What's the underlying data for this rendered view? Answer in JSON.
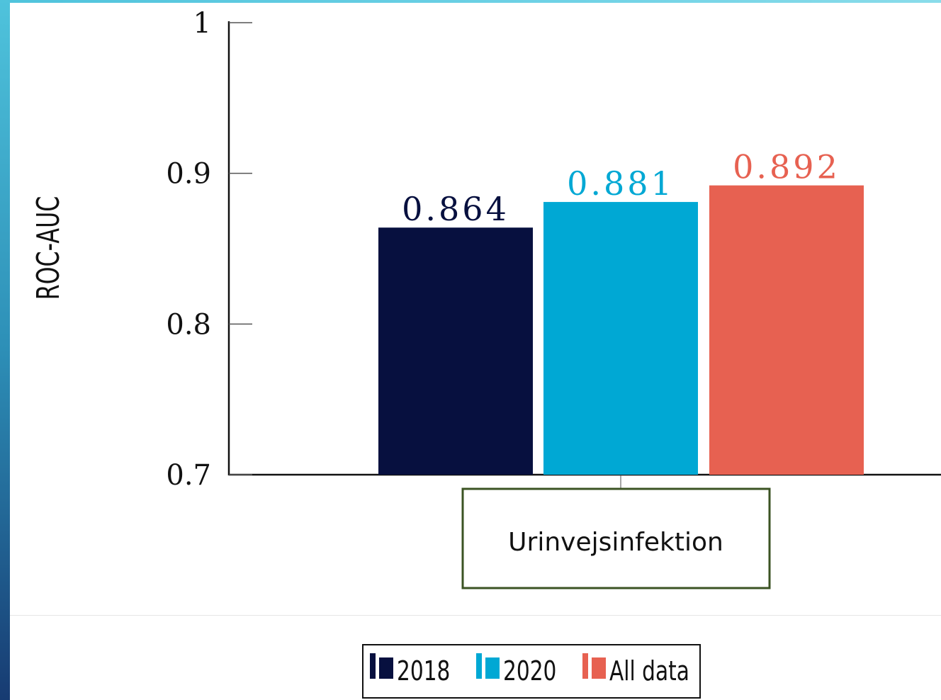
{
  "chart_data": {
    "type": "bar",
    "categories": [
      "Urinvejsinfektion"
    ],
    "series": [
      {
        "name": "2018",
        "values": [
          0.864
        ],
        "color": "#07103f",
        "label": "0.864"
      },
      {
        "name": "2020",
        "values": [
          0.881
        ],
        "color": "#00a8d4",
        "label": "0.881"
      },
      {
        "name": "All data",
        "values": [
          0.892
        ],
        "color": "#e76151",
        "label": "0.892"
      }
    ],
    "ylabel": "ROC-AUC",
    "ylim": [
      0.7,
      1.0
    ],
    "yticks": [
      0.7,
      0.8,
      0.9,
      1.0
    ],
    "ytick_labels": [
      "0.7",
      "0.8",
      "0.9",
      "1"
    ],
    "legend_position": "bottom-center",
    "grid": false
  }
}
